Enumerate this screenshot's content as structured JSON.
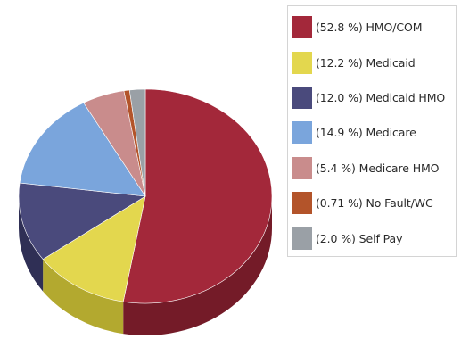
{
  "chart_data": {
    "type": "pie",
    "title": "",
    "slices": [
      {
        "label": "(52.8 %) HMO/COM",
        "value": 52.8,
        "color": "#a3283a",
        "side_color": "#741b28",
        "icon": "swatch"
      },
      {
        "label": "(12.2 %) Medicaid",
        "value": 12.2,
        "color": "#e3d74e",
        "side_color": "#b3a92f"
      },
      {
        "label": "(12.0 %) Medicaid HMO",
        "value": 12.0,
        "color": "#4a4a7c",
        "side_color": "#2f2f55"
      },
      {
        "label": "(14.9 %) Medicare",
        "value": 14.9,
        "color": "#7aa5dc",
        "side_color": "#5278a8"
      },
      {
        "label": "(5.4 %) Medicare HMO",
        "value": 5.4,
        "color": "#c98c8c",
        "side_color": "#9a6363"
      },
      {
        "label": "(0.71 %) No Fault/WC",
        "value": 0.71,
        "color": "#b3542a",
        "side_color": "#7f3818"
      },
      {
        "label": "(2.0 %) Self Pay",
        "value": 2.0,
        "color": "#9aa0a6",
        "side_color": "#6c7177"
      }
    ],
    "legend_position": "right"
  }
}
